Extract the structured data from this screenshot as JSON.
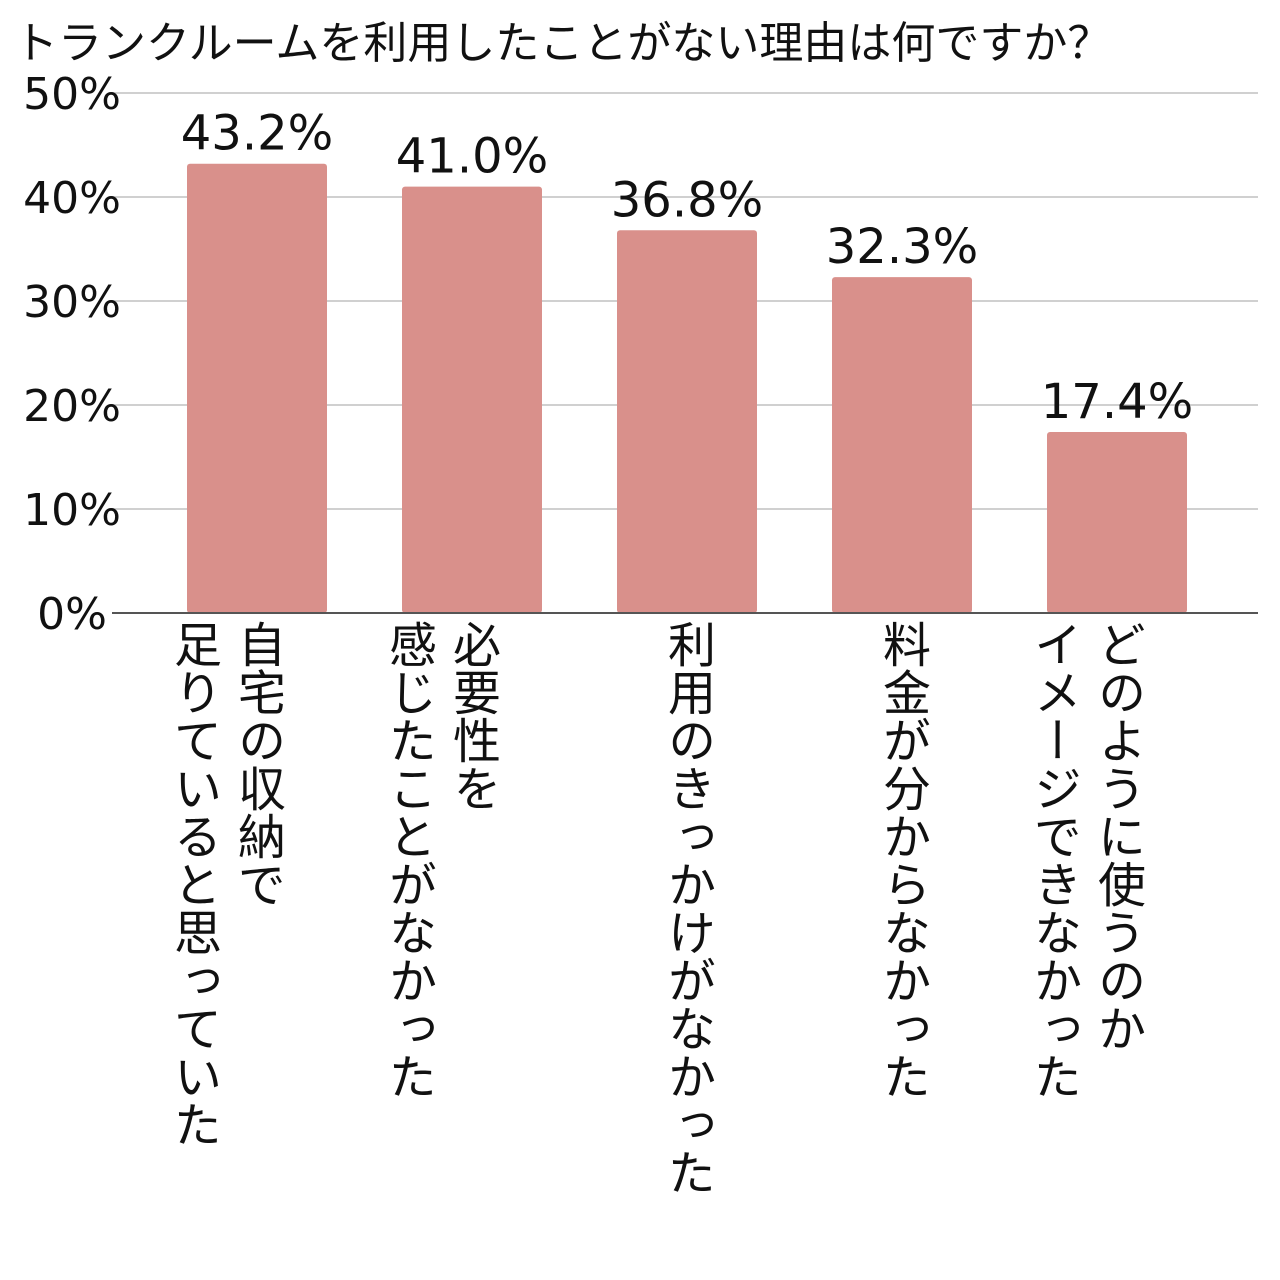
{
  "chart_data": {
    "type": "bar",
    "title": "トランクルームを利用したことがない理由は何ですか？",
    "categories": [
      "自宅の収納で\n足りていると思っていた",
      "必要性を\n感じたことがなかった",
      "利用のきっかけがなかった",
      "料金が分からなかった",
      "どのように使うのか\nイメージできなかった"
    ],
    "values": [
      43.2,
      41.0,
      36.8,
      32.3,
      17.4
    ],
    "value_labels": [
      "43.2%",
      "41.0%",
      "36.8%",
      "32.3%",
      "17.4%"
    ],
    "ylim": [
      0,
      50
    ],
    "yticks": [
      0,
      10,
      20,
      30,
      40,
      50
    ],
    "ytick_labels": [
      "0%",
      "10%",
      "20%",
      "30%",
      "40%",
      "50%"
    ],
    "grid": true,
    "legend": "none",
    "bar_color": "#d9908b",
    "grid_color": "#d0d0d0",
    "axis_color": "#555555"
  }
}
